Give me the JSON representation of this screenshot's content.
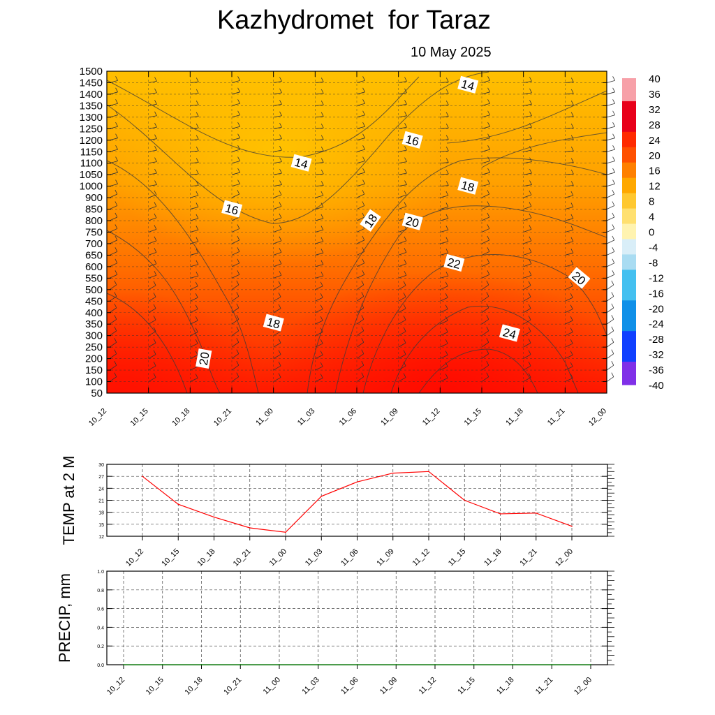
{
  "header": {
    "title": "Kazhydromet  for Taraz",
    "date": "10 May 2025"
  },
  "chart_data": [
    {
      "type": "heatmap",
      "description_of_axes": "time vs height",
      "x_ticks": [
        "10_12",
        "10_15",
        "10_18",
        "10_21",
        "11_00",
        "11_03",
        "11_06",
        "11_09",
        "11_12",
        "11_15",
        "11_18",
        "11_21",
        "12_00"
      ],
      "y_ticks": [
        50,
        100,
        150,
        200,
        250,
        300,
        350,
        400,
        450,
        500,
        550,
        600,
        650,
        700,
        750,
        800,
        850,
        900,
        1000,
        1050,
        1100,
        1150,
        1200,
        1250,
        1300,
        1350,
        1400,
        1450,
        1500
      ],
      "colorbar_labels": [
        "40",
        "36",
        "32",
        "28",
        "24",
        "20",
        "16",
        "12",
        "8",
        "4",
        "0",
        "-4",
        "-8",
        "-12",
        "-16",
        "-20",
        "-24",
        "-28",
        "-32",
        "-36",
        "-40"
      ],
      "contour_labels": [
        {
          "text": "14",
          "x": "11_14",
          "y": 1440
        },
        {
          "text": "16",
          "x": "11_10",
          "y": 1200
        },
        {
          "text": "14",
          "x": "11_02",
          "y": 1100
        },
        {
          "text": "18",
          "x": "11_14",
          "y": 1000
        },
        {
          "text": "16",
          "x": "10_21",
          "y": 850
        },
        {
          "text": "18",
          "x": "11_07",
          "y": 800
        },
        {
          "text": "20",
          "x": "11_10",
          "y": 795
        },
        {
          "text": "22",
          "x": "11_13",
          "y": 615
        },
        {
          "text": "20",
          "x": "11_22",
          "y": 550
        },
        {
          "text": "18",
          "x": "11_00",
          "y": 355
        },
        {
          "text": "24",
          "x": "11_17",
          "y": 310
        },
        {
          "text": "20",
          "x": "10_19",
          "y": 200
        }
      ],
      "colors": {
        "warm_top": "#ffb300",
        "warm_mid": "#ff6a00",
        "hot_bottom": "#ff1a00",
        "line": "#3a3a3a"
      }
    },
    {
      "type": "line",
      "ylabel": "TEMP at 2 M",
      "x": [
        "10_12",
        "10_15",
        "10_18",
        "10_21",
        "11_00",
        "11_03",
        "11_06",
        "11_09",
        "11_12",
        "11_15",
        "11_18",
        "11_21",
        "12_00"
      ],
      "y_ticks": [
        "12",
        "15",
        "18",
        "21",
        "24",
        "27",
        "30"
      ],
      "ylim": [
        12,
        30
      ],
      "series": [
        {
          "values": [
            27.0,
            20.0,
            16.8,
            14.1,
            13.0,
            22.0,
            25.6,
            27.8,
            28.2,
            21.0,
            17.6,
            17.8,
            14.5
          ],
          "color": "#ff0000"
        }
      ]
    },
    {
      "type": "line",
      "ylabel": "PRECIP, mm",
      "x": [
        "10_12",
        "10_15",
        "10_18",
        "10_21",
        "11_00",
        "11_03",
        "11_06",
        "11_09",
        "11_12",
        "11_15",
        "11_18",
        "11_21",
        "12_00"
      ],
      "y_ticks": [
        "0.0",
        "0.2",
        "0.4",
        "0.6",
        "0.8",
        "1.0"
      ],
      "ylim": [
        0,
        1
      ],
      "series": [
        {
          "values": [
            0,
            0,
            0,
            0,
            0,
            0,
            0,
            0,
            0,
            0,
            0,
            0,
            0
          ],
          "color": "#008000"
        }
      ]
    }
  ]
}
